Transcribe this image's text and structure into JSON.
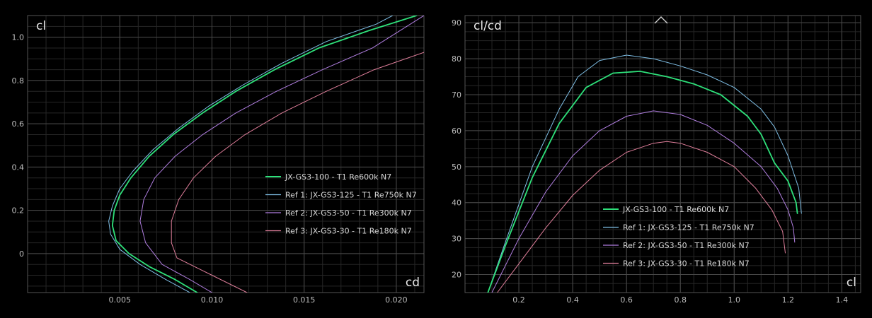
{
  "chart_data": [
    {
      "type": "line",
      "name": "polar-cl-cd",
      "xlabel": "cd",
      "ylabel": "cl",
      "xlim": [
        0.0,
        0.0215
      ],
      "ylim": [
        -0.18,
        1.1
      ],
      "x_ticks": [
        0.005,
        0.01,
        0.015,
        0.02
      ],
      "x_tick_labels": [
        "0.005",
        "0.010",
        "0.015",
        "0.020"
      ],
      "y_ticks": [
        0,
        0.2,
        0.4,
        0.6,
        0.8,
        1.0
      ],
      "y_tick_labels": [
        "0",
        "0.2",
        "0.4",
        "0.6",
        "0.8",
        "1.0"
      ],
      "x_minor": 0.001,
      "y_minor": 0.05,
      "grid": true,
      "legend_position": "bottom-right",
      "series": [
        {
          "name": "JX-GS3-100 - T1 Re600k N7",
          "color": "#2ee07a",
          "width": 1.8,
          "points": [
            [
              0.0092,
              -0.18
            ],
            [
              0.008,
              -0.12
            ],
            [
              0.0066,
              -0.06
            ],
            [
              0.0055,
              0.0
            ],
            [
              0.0048,
              0.06
            ],
            [
              0.0046,
              0.13
            ],
            [
              0.0047,
              0.2
            ],
            [
              0.005,
              0.27
            ],
            [
              0.0056,
              0.35
            ],
            [
              0.0066,
              0.45
            ],
            [
              0.0079,
              0.55
            ],
            [
              0.0095,
              0.65
            ],
            [
              0.0113,
              0.75
            ],
            [
              0.0134,
              0.85
            ],
            [
              0.0158,
              0.95
            ],
            [
              0.0185,
              1.03
            ],
            [
              0.0211,
              1.1
            ]
          ]
        },
        {
          "name": "Ref 1: JX-GS3-125 - T1 Re750k N7",
          "color": "#7fbfe6",
          "width": 1.0,
          "points": [
            [
              0.0088,
              -0.18
            ],
            [
              0.0075,
              -0.12
            ],
            [
              0.0061,
              -0.05
            ],
            [
              0.005,
              0.02
            ],
            [
              0.0045,
              0.09
            ],
            [
              0.0044,
              0.15
            ],
            [
              0.0046,
              0.22
            ],
            [
              0.005,
              0.3
            ],
            [
              0.0057,
              0.38
            ],
            [
              0.0068,
              0.48
            ],
            [
              0.0082,
              0.58
            ],
            [
              0.0098,
              0.68
            ],
            [
              0.0117,
              0.78
            ],
            [
              0.0138,
              0.88
            ],
            [
              0.0162,
              0.98
            ],
            [
              0.0189,
              1.06
            ],
            [
              0.0198,
              1.1
            ]
          ]
        },
        {
          "name": "Ref 2: JX-GS3-50 - T1 Re300k N7",
          "color": "#b07ee0",
          "width": 1.0,
          "points": [
            [
              0.01,
              -0.18
            ],
            [
              0.0088,
              -0.12
            ],
            [
              0.0073,
              -0.05
            ],
            [
              0.0064,
              0.05
            ],
            [
              0.0061,
              0.15
            ],
            [
              0.0063,
              0.25
            ],
            [
              0.0069,
              0.35
            ],
            [
              0.008,
              0.45
            ],
            [
              0.0095,
              0.55
            ],
            [
              0.0113,
              0.65
            ],
            [
              0.0135,
              0.75
            ],
            [
              0.016,
              0.85
            ],
            [
              0.0187,
              0.95
            ],
            [
              0.0215,
              1.1
            ]
          ]
        },
        {
          "name": "Ref 3: JX-GS3-30 - T1 Re180k N7",
          "color": "#e07f9b",
          "width": 1.0,
          "points": [
            [
              0.0119,
              -0.18
            ],
            [
              0.01,
              -0.1
            ],
            [
              0.0081,
              -0.02
            ],
            [
              0.0078,
              0.05
            ],
            [
              0.0078,
              0.15
            ],
            [
              0.0082,
              0.25
            ],
            [
              0.009,
              0.35
            ],
            [
              0.0102,
              0.45
            ],
            [
              0.0118,
              0.55
            ],
            [
              0.0138,
              0.65
            ],
            [
              0.0162,
              0.75
            ],
            [
              0.0188,
              0.85
            ],
            [
              0.0215,
              0.93
            ]
          ]
        }
      ]
    },
    {
      "type": "line",
      "name": "polar-clcd-cl",
      "xlabel": "cl",
      "ylabel": "cl/cd",
      "xlim": [
        0.0,
        1.47
      ],
      "ylim": [
        15,
        92
      ],
      "x_ticks": [
        0.2,
        0.4,
        0.6,
        0.8,
        1.0,
        1.2,
        1.4
      ],
      "x_tick_labels": [
        "0.2",
        "0.4",
        "0.6",
        "0.8",
        "1.0",
        "1.2",
        "1.4"
      ],
      "y_ticks": [
        20,
        30,
        40,
        50,
        60,
        70,
        80,
        90
      ],
      "y_tick_labels": [
        "20",
        "30",
        "40",
        "50",
        "60",
        "70",
        "80",
        "90"
      ],
      "x_minor": 0.05,
      "y_minor": 2.5,
      "grid": true,
      "legend_position": "bottom-center",
      "series": [
        {
          "name": "JX-GS3-100 - T1 Re600k N7",
          "color": "#2ee07a",
          "width": 1.8,
          "points": [
            [
              0.085,
              15
            ],
            [
              0.15,
              28
            ],
            [
              0.25,
              47
            ],
            [
              0.35,
              62
            ],
            [
              0.45,
              72
            ],
            [
              0.55,
              76
            ],
            [
              0.65,
              76.5
            ],
            [
              0.75,
              75
            ],
            [
              0.85,
              73
            ],
            [
              0.95,
              70
            ],
            [
              1.05,
              64
            ],
            [
              1.1,
              59
            ],
            [
              1.15,
              51
            ],
            [
              1.2,
              46
            ],
            [
              1.23,
              40
            ],
            [
              1.235,
              37
            ]
          ]
        },
        {
          "name": "Ref 1: JX-GS3-125 - T1 Re750k N7",
          "color": "#7fbfe6",
          "width": 1.0,
          "points": [
            [
              0.085,
              15
            ],
            [
              0.15,
              29
            ],
            [
              0.25,
              50
            ],
            [
              0.35,
              66
            ],
            [
              0.42,
              75
            ],
            [
              0.5,
              79.5
            ],
            [
              0.6,
              81
            ],
            [
              0.7,
              80
            ],
            [
              0.8,
              78
            ],
            [
              0.9,
              75.5
            ],
            [
              1.0,
              72
            ],
            [
              1.1,
              66
            ],
            [
              1.15,
              61
            ],
            [
              1.2,
              53
            ],
            [
              1.24,
              44
            ],
            [
              1.25,
              37
            ]
          ]
        },
        {
          "name": "Ref 2: JX-GS3-50 - T1 Re300k N7",
          "color": "#b07ee0",
          "width": 1.0,
          "points": [
            [
              0.1,
              15
            ],
            [
              0.2,
              30
            ],
            [
              0.3,
              43
            ],
            [
              0.4,
              53
            ],
            [
              0.5,
              60
            ],
            [
              0.6,
              64
            ],
            [
              0.7,
              65.5
            ],
            [
              0.8,
              64.5
            ],
            [
              0.9,
              61.5
            ],
            [
              1.0,
              56.5
            ],
            [
              1.1,
              50
            ],
            [
              1.16,
              44
            ],
            [
              1.2,
              38
            ],
            [
              1.22,
              33
            ],
            [
              1.225,
              29
            ]
          ]
        },
        {
          "name": "Ref 3: JX-GS3-30 - T1 Re180k N7",
          "color": "#e07f9b",
          "width": 1.0,
          "points": [
            [
              0.12,
              15
            ],
            [
              0.2,
              23
            ],
            [
              0.3,
              33
            ],
            [
              0.4,
              42
            ],
            [
              0.5,
              49
            ],
            [
              0.6,
              54
            ],
            [
              0.7,
              56.5
            ],
            [
              0.75,
              57
            ],
            [
              0.8,
              56.5
            ],
            [
              0.9,
              54
            ],
            [
              1.0,
              50
            ],
            [
              1.08,
              44
            ],
            [
              1.14,
              38
            ],
            [
              1.18,
              32
            ],
            [
              1.19,
              26
            ]
          ]
        }
      ]
    }
  ],
  "ui": {
    "collapse_icon": "chevron-up-icon"
  }
}
